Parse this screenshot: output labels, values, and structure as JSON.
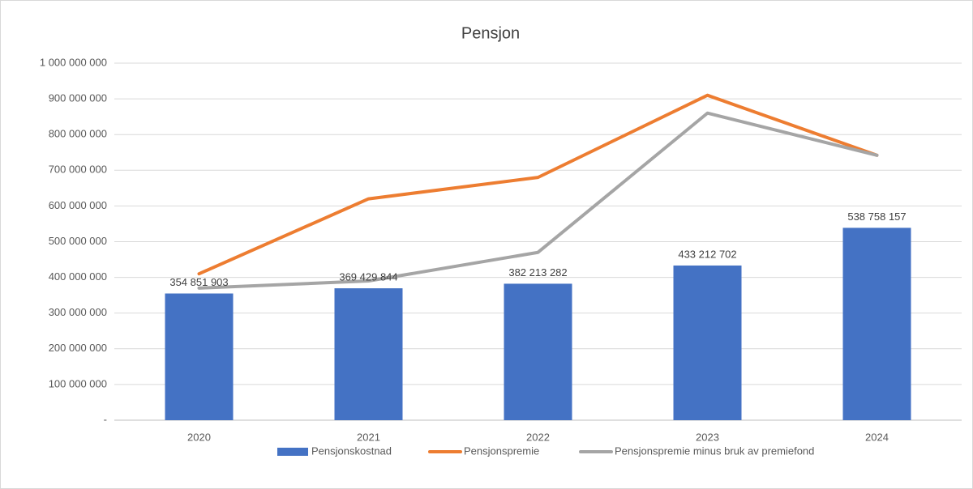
{
  "chart_data": {
    "type": "bar",
    "title": "Pensjon",
    "categories": [
      "2020",
      "2021",
      "2022",
      "2023",
      "2024"
    ],
    "series": [
      {
        "name": "Pensjonskostnad",
        "type": "bar",
        "color": "#4472c4",
        "values": [
          354851903,
          369429844,
          382213282,
          433212702,
          538758157
        ],
        "value_labels": [
          "354 851 903",
          "369 429 844",
          "382 213 282",
          "433 212 702",
          "538 758 157"
        ]
      },
      {
        "name": "Pensjonspremie",
        "type": "line",
        "color": "#ed7d31",
        "values": [
          410000000,
          620000000,
          680000000,
          910000000,
          742000000
        ]
      },
      {
        "name": "Pensjonspremie minus bruk av premiefond",
        "type": "line",
        "color": "#a5a5a5",
        "values": [
          370000000,
          390000000,
          470000000,
          860000000,
          742000000
        ]
      }
    ],
    "ylim": [
      0,
      1000000000
    ],
    "yticks": [
      {
        "value": 0,
        "label": "-"
      },
      {
        "value": 100000000,
        "label": "100 000 000"
      },
      {
        "value": 200000000,
        "label": "200 000 000"
      },
      {
        "value": 300000000,
        "label": "300 000 000"
      },
      {
        "value": 400000000,
        "label": "400 000 000"
      },
      {
        "value": 500000000,
        "label": "500 000 000"
      },
      {
        "value": 600000000,
        "label": "600 000 000"
      },
      {
        "value": 700000000,
        "label": "700 000 000"
      },
      {
        "value": 800000000,
        "label": "800 000 000"
      },
      {
        "value": 900000000,
        "label": "900 000 000"
      },
      {
        "value": 1000000000,
        "label": "1 000 000 000"
      }
    ],
    "grid": true,
    "legend": "bottom"
  }
}
